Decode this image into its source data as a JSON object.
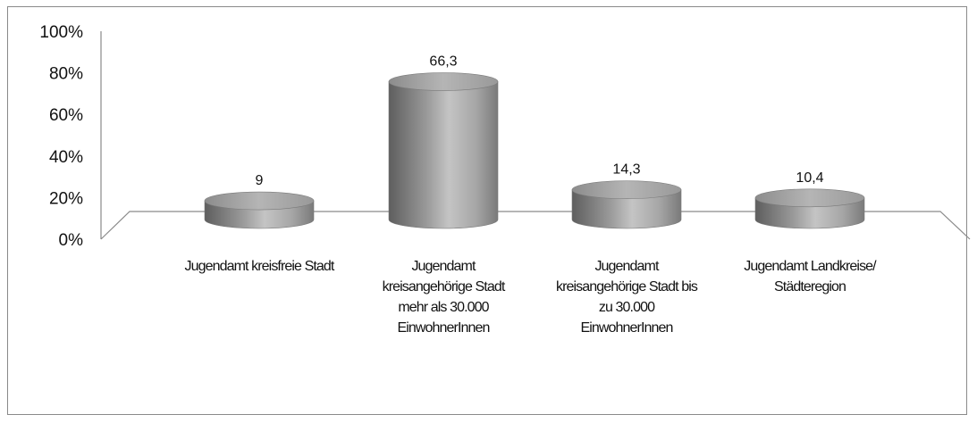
{
  "chart_data": {
    "type": "bar",
    "title": "",
    "xlabel": "",
    "ylabel": "",
    "categories": [
      "Jugendamt kreisfreie Stadt",
      "Jugendamt kreisangehörige Stadt mehr als 30.000 EinwohnerInnen",
      "Jugendamt kreisangehörige Stadt bis zu 30.000 EinwohnerInnen",
      "Jugendamt Landkreise/ Städteregion"
    ],
    "values": [
      9,
      66.3,
      14.3,
      10.4
    ],
    "data_labels": [
      "9",
      "66,3",
      "14,3",
      "10,4"
    ],
    "yticks": [
      "0%",
      "20%",
      "40%",
      "60%",
      "80%",
      "100%"
    ],
    "ylim": [
      0,
      100
    ],
    "grid": false,
    "bar_color": "#9c9c9c",
    "style": "3d-cylinder"
  }
}
